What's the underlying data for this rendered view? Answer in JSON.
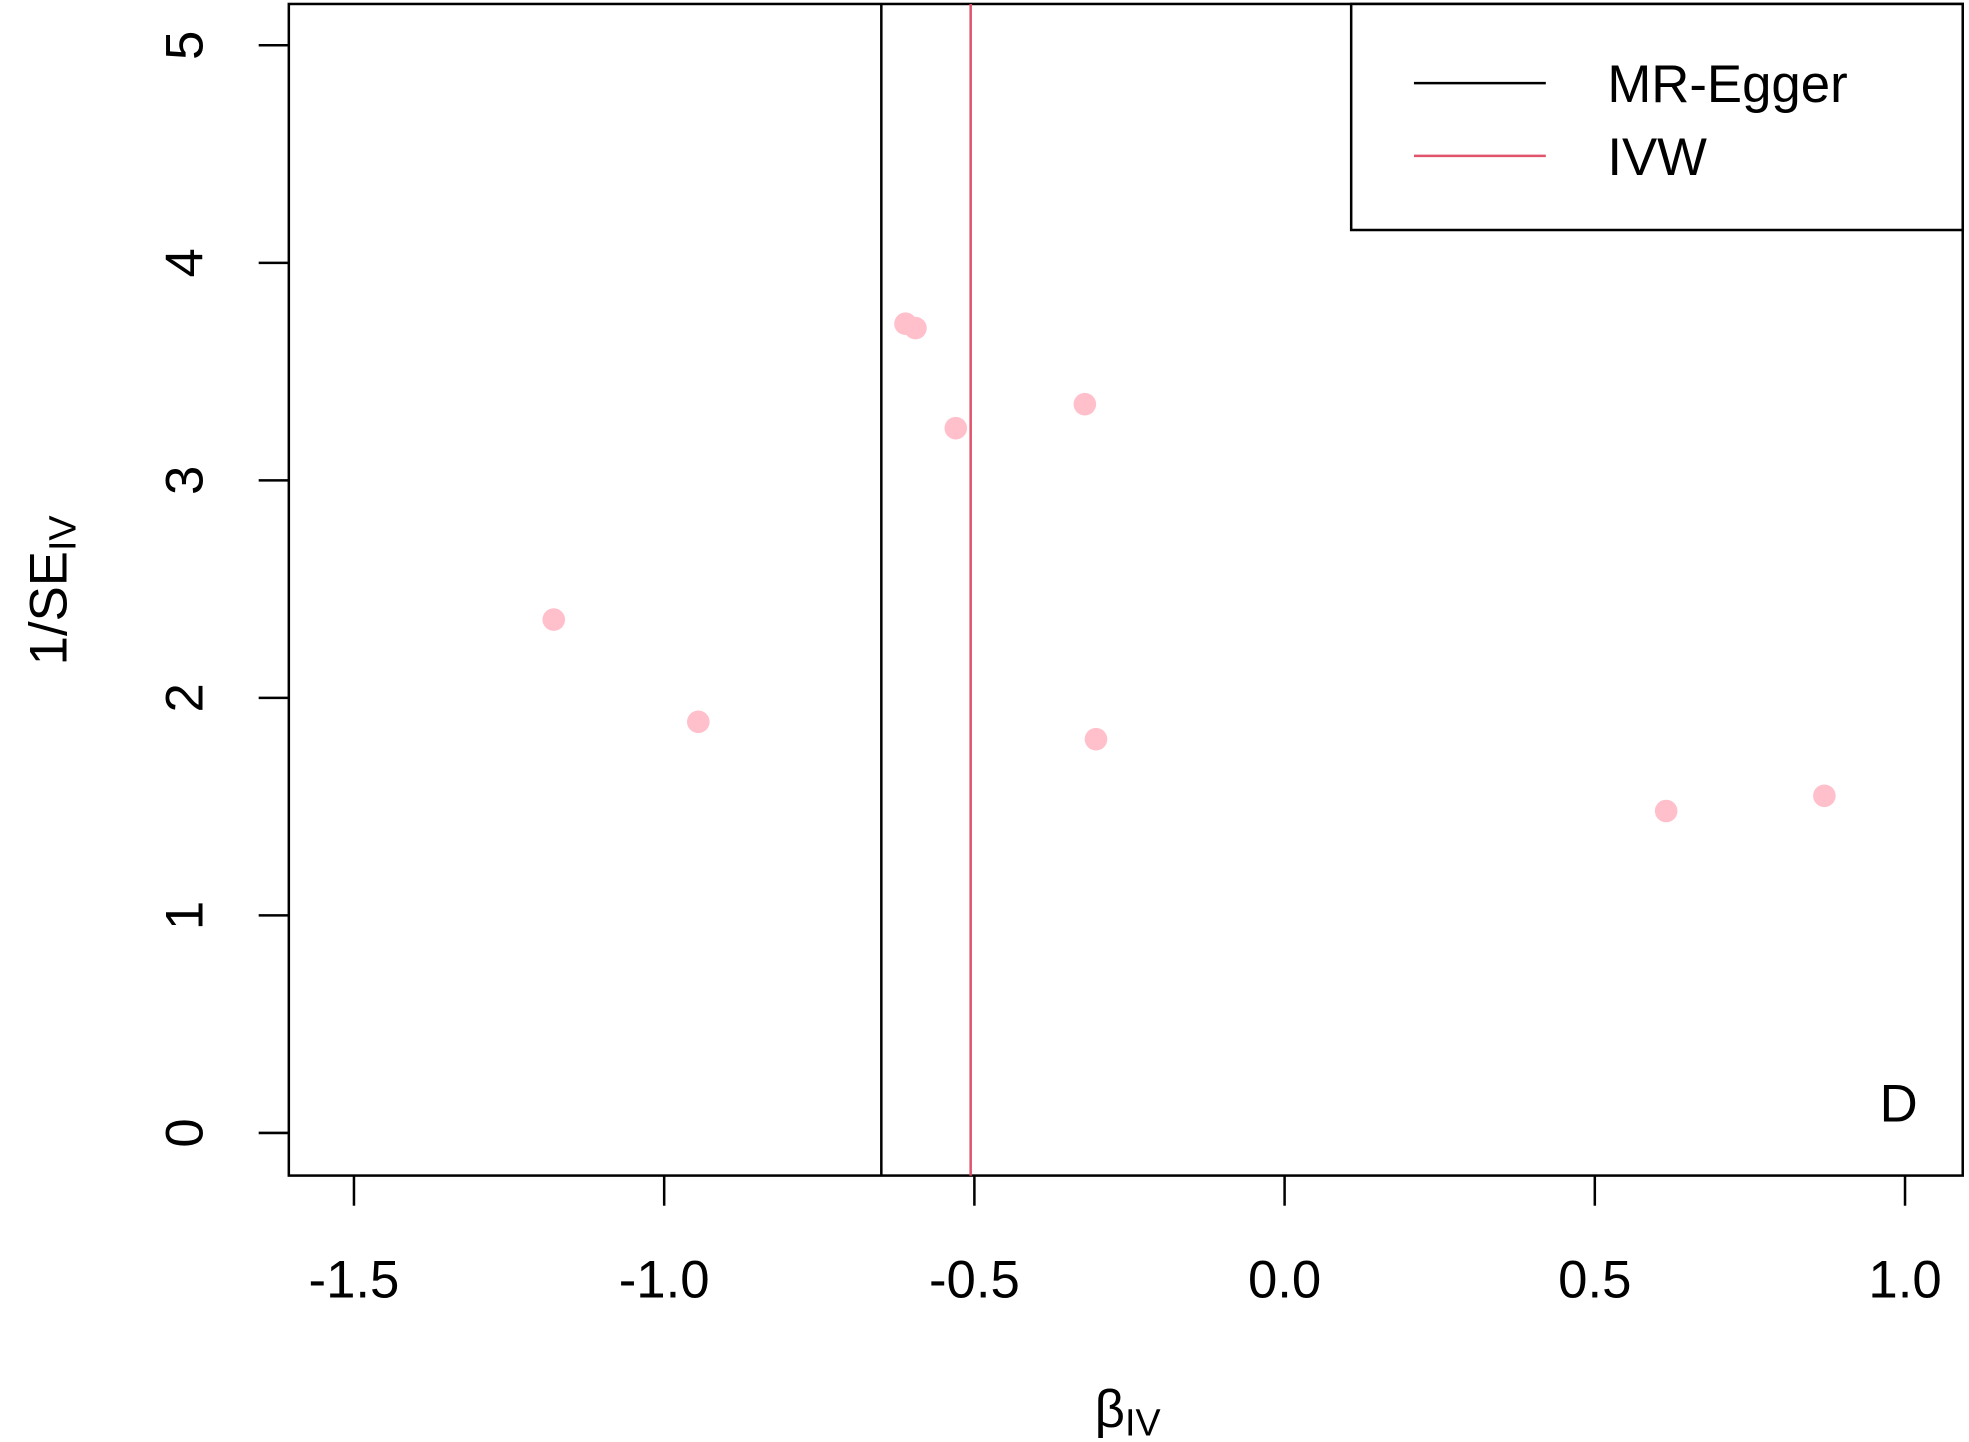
{
  "chart_data": {
    "type": "scatter",
    "xlabel": {
      "main": "β",
      "sub": "IV"
    },
    "ylabel": {
      "main": "1/SE",
      "sub": "IV"
    },
    "annotation": "D",
    "x": [
      -1.178,
      -0.945,
      -0.611,
      -0.595,
      -0.53,
      -0.322,
      -0.304,
      0.615,
      0.87
    ],
    "y": [
      2.36,
      1.89,
      3.72,
      3.7,
      3.24,
      3.35,
      1.81,
      1.48,
      1.55
    ],
    "color": "#ffc0cb",
    "lines": [
      {
        "name": "MR-Egger",
        "color": "#000000",
        "x": -0.65
      },
      {
        "name": "IVW",
        "color": "#df536b",
        "x": -0.506
      }
    ],
    "xlim": [
      -1.605,
      1.093
    ],
    "ylim": [
      -0.196,
      5.19
    ],
    "xticks": [
      -1.5,
      {
        "value": -1.0,
        "label": "-1.0"
      },
      -0.5,
      {
        "value": 0,
        "label": "0.0"
      },
      0.5,
      {
        "value": 1.0,
        "label": "1.0"
      }
    ],
    "yticks": [
      0,
      1,
      2,
      3,
      4,
      5
    ],
    "legend": "top-right"
  }
}
